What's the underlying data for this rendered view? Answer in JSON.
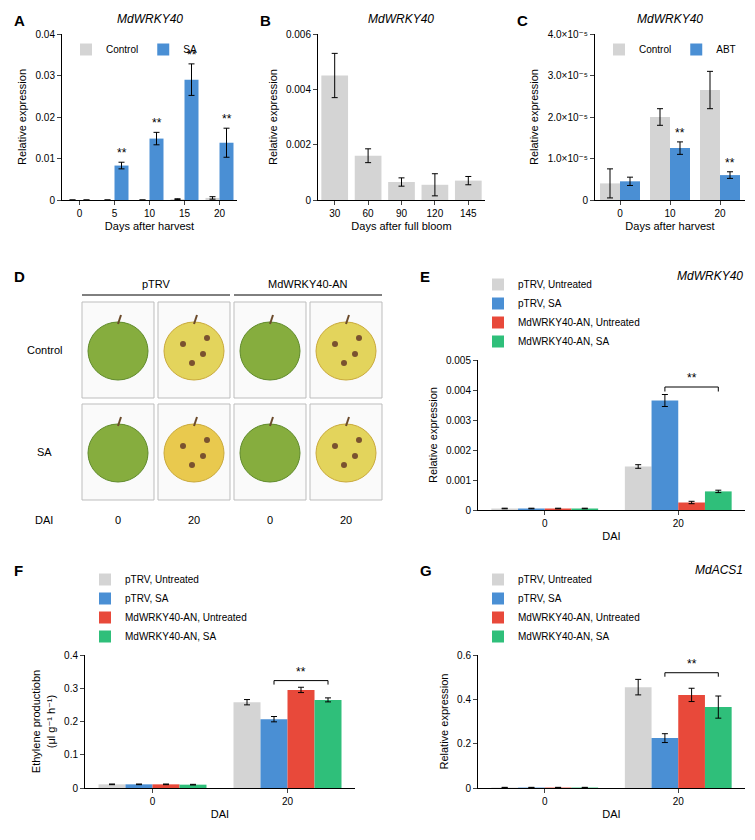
{
  "chart_data": [
    {
      "panel": "A",
      "type": "bar",
      "title": "MdWRKY40",
      "x_label": "Days after harvest",
      "y_label": "Relative expression",
      "categories": [
        "0",
        "5",
        "10",
        "15",
        "20"
      ],
      "series": [
        {
          "name": "Control",
          "color": "#d4d4d4",
          "values": [
            0,
            0,
            0,
            0.0002,
            0.0005
          ],
          "errors": [
            0,
            0,
            0,
            0.0001,
            0.0003
          ]
        },
        {
          "name": "SA",
          "color": "#4a8fd4",
          "values": [
            0,
            0.0083,
            0.0148,
            0.029,
            0.0138
          ],
          "errors": [
            0,
            0.0008,
            0.0015,
            0.0038,
            0.0035
          ]
        }
      ],
      "ylim": [
        0,
        0.04
      ],
      "yticks": [
        0,
        0.01,
        0.02,
        0.03,
        0.04
      ],
      "grid": false,
      "legend": "top left",
      "significance": [
        {
          "category": "5",
          "series": "SA",
          "text": "**"
        },
        {
          "category": "10",
          "series": "SA",
          "text": "**"
        },
        {
          "category": "15",
          "series": "SA",
          "text": "**"
        },
        {
          "category": "20",
          "series": "SA",
          "text": "**"
        }
      ]
    },
    {
      "panel": "B",
      "type": "bar",
      "title": "MdWRKY40",
      "x_label": "Days after full bloom",
      "y_label": "Relative expression",
      "categories": [
        "30",
        "60",
        "90",
        "120",
        "145"
      ],
      "values": [
        0.0045,
        0.0016,
        0.00065,
        0.00055,
        0.0007
      ],
      "errors": [
        0.0008,
        0.00025,
        0.00015,
        0.0004,
        0.00015
      ],
      "color": "#d4d4d4",
      "ylim": [
        0,
        0.006
      ],
      "yticks": [
        0,
        0.002,
        0.004,
        0.006
      ],
      "grid": false
    },
    {
      "panel": "C",
      "type": "bar",
      "title": "MdWRKY40",
      "x_label": "Days after harvest",
      "y_label": "Relative expression",
      "categories": [
        "0",
        "10",
        "20"
      ],
      "series": [
        {
          "name": "Control",
          "color": "#d4d4d4",
          "values": [
            4e-06,
            2e-05,
            2.65e-05
          ],
          "errors": [
            3.5e-06,
            2e-06,
            4.5e-06
          ]
        },
        {
          "name": "ABT",
          "color": "#4a8fd4",
          "values": [
            4.5e-06,
            1.25e-05,
            6e-06
          ],
          "errors": [
            1e-06,
            1.5e-06,
            8e-07
          ]
        }
      ],
      "ylim": [
        0,
        4e-05
      ],
      "yticks": [
        0,
        {
          "value": 1e-05,
          "label": "1.0×10⁻⁵"
        },
        {
          "value": 2e-05,
          "label": "2.0×10⁻⁵"
        },
        {
          "value": 3e-05,
          "label": "3.0×10⁻⁵"
        },
        {
          "value": 4e-05,
          "label": "4.0×10⁻⁵"
        }
      ],
      "grid": false,
      "legend": "top left",
      "significance": [
        {
          "category": "10",
          "series": "ABT",
          "text": "**"
        },
        {
          "category": "20",
          "series": "ABT",
          "text": "**"
        }
      ]
    },
    {
      "panel": "E",
      "type": "bar",
      "title": "MdWRKY40",
      "x_label": "DAI",
      "y_label": "Relative expression",
      "categories": [
        "0",
        "20"
      ],
      "series": [
        {
          "name": "pTRV, Untreated",
          "color": "#d4d4d4",
          "values": [
            5e-05,
            0.00145
          ],
          "errors": [
            1e-05,
            6e-05
          ]
        },
        {
          "name": "pTRV, SA",
          "color": "#4a8fd4",
          "values": [
            5e-05,
            0.00365
          ],
          "errors": [
            1e-05,
            0.0002
          ]
        },
        {
          "name": "MdWRKY40-AN, Untreated",
          "color": "#e8493a",
          "values": [
            5e-05,
            0.00025
          ],
          "errors": [
            1e-05,
            4e-05
          ]
        },
        {
          "name": "MdWRKY40-AN, SA",
          "color": "#2fbf7a",
          "values": [
            5e-05,
            0.00062
          ],
          "errors": [
            1e-05,
            4e-05
          ]
        }
      ],
      "ylim": [
        0,
        0.005
      ],
      "yticks": [
        0,
        0.001,
        0.002,
        0.003,
        0.004,
        0.005
      ],
      "grid": false,
      "legend": "above",
      "significance": [
        {
          "category": "20",
          "between": [
            "pTRV, SA",
            "MdWRKY40-AN, SA"
          ],
          "text": "**"
        }
      ]
    },
    {
      "panel": "F",
      "type": "bar",
      "x_label": "DAI",
      "y_label": "Ethylene productiobn (μl g⁻¹ h⁻¹)",
      "categories": [
        "0",
        "20"
      ],
      "series": [
        {
          "name": "pTRV, Untreated",
          "color": "#d4d4d4",
          "values": [
            0.011,
            0.258
          ],
          "errors": [
            0.001,
            0.008
          ]
        },
        {
          "name": "pTRV, SA",
          "color": "#4a8fd4",
          "values": [
            0.011,
            0.207
          ],
          "errors": [
            0.001,
            0.008
          ]
        },
        {
          "name": "MdWRKY40-AN, Untreated",
          "color": "#e8493a",
          "values": [
            0.011,
            0.295
          ],
          "errors": [
            0.001,
            0.008
          ]
        },
        {
          "name": "MdWRKY40-AN, SA",
          "color": "#2fbf7a",
          "values": [
            0.01,
            0.265
          ],
          "errors": [
            0.001,
            0.006
          ]
        }
      ],
      "ylim": [
        0,
        0.4
      ],
      "yticks": [
        0,
        0.1,
        0.2,
        0.3,
        0.4
      ],
      "grid": false,
      "legend": "above",
      "significance": [
        {
          "category": "20",
          "between": [
            "pTRV, SA",
            "MdWRKY40-AN, SA"
          ],
          "text": "**"
        }
      ]
    },
    {
      "panel": "G",
      "type": "bar",
      "title": "MdACS1",
      "x_label": "DAI",
      "y_label": "Relative expression",
      "categories": [
        "0",
        "20"
      ],
      "series": [
        {
          "name": "pTRV, Untreated",
          "color": "#d4d4d4",
          "values": [
            0.002,
            0.455
          ],
          "errors": [
            0.001,
            0.035
          ]
        },
        {
          "name": "pTRV, SA",
          "color": "#4a8fd4",
          "values": [
            0.002,
            0.225
          ],
          "errors": [
            0.001,
            0.02
          ]
        },
        {
          "name": "MdWRKY40-AN, Untreated",
          "color": "#e8493a",
          "values": [
            0.002,
            0.42
          ],
          "errors": [
            0.001,
            0.03
          ]
        },
        {
          "name": "MdWRKY40-AN, SA",
          "color": "#2fbf7a",
          "values": [
            0.002,
            0.365
          ],
          "errors": [
            0.001,
            0.05
          ]
        }
      ],
      "ylim": [
        0,
        0.6
      ],
      "yticks": [
        0,
        0.2,
        0.4,
        0.6
      ],
      "grid": false,
      "legend": "above",
      "significance": [
        {
          "category": "20",
          "between": [
            "pTRV, SA",
            "MdWRKY40-AN, SA"
          ],
          "text": "**"
        }
      ]
    }
  ],
  "photo_panel": {
    "panel": "D",
    "groups": [
      {
        "name": "pTRV",
        "days": [
          0,
          20
        ]
      },
      {
        "name": "MdWRKY40-AN",
        "days": [
          0,
          20
        ]
      }
    ],
    "rows": [
      "Control",
      "SA"
    ],
    "x_label": "DAI"
  }
}
